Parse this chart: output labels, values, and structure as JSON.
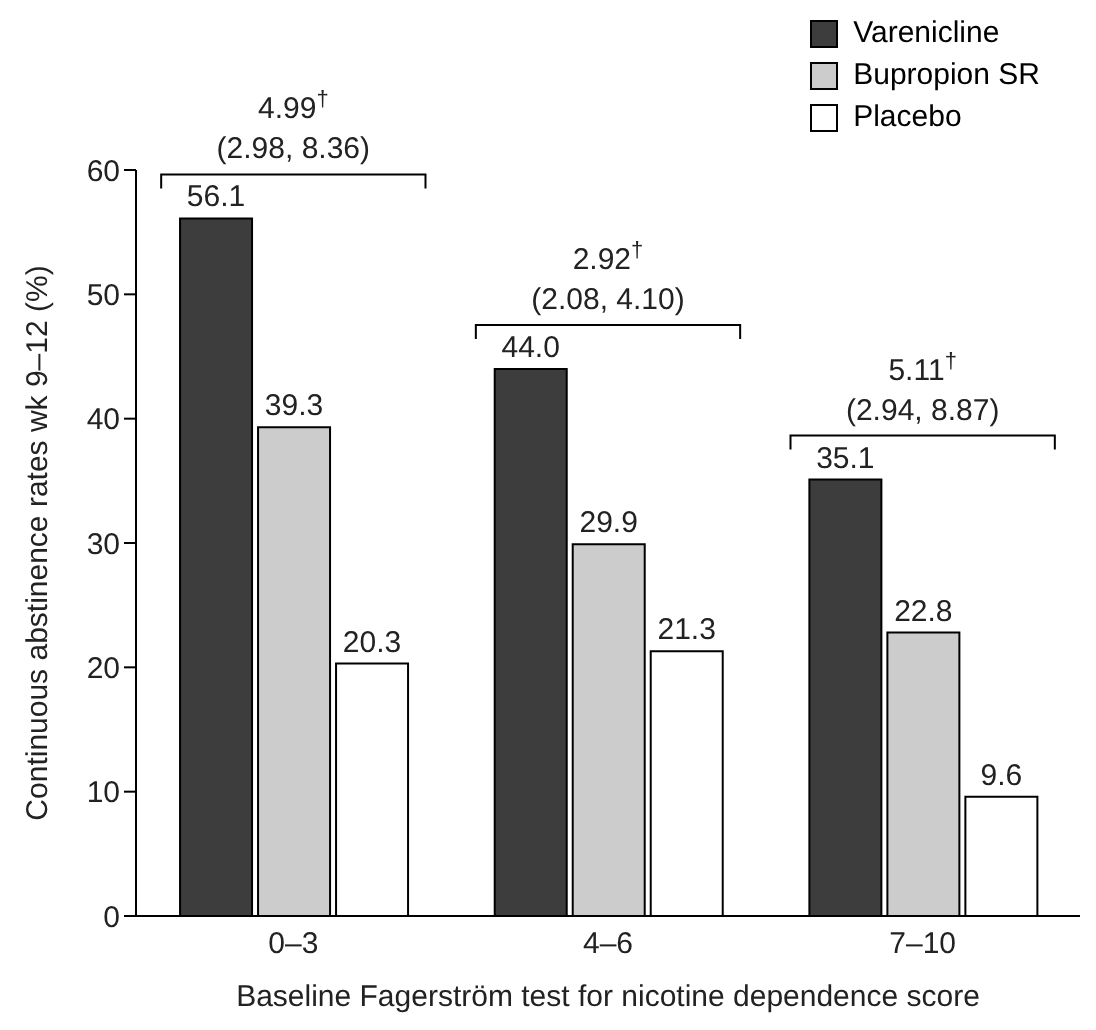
{
  "chart_data": {
    "type": "bar",
    "xlabel": "Baseline Fagerström test for nicotine dependence score",
    "ylabel": "Continuous abstinence rates wk 9–12 (%)",
    "categories": [
      "0–3",
      "4–6",
      "7–10"
    ],
    "series": [
      {
        "name": "Varenicline",
        "color": "#3d3d3d",
        "values": [
          56.1,
          44.0,
          35.1
        ],
        "value_labels": [
          "56.1",
          "44.0",
          "35.1"
        ]
      },
      {
        "name": "Bupropion SR",
        "color": "#cccccc",
        "values": [
          39.3,
          29.9,
          22.8
        ],
        "value_labels": [
          "39.3",
          "29.9",
          "22.8"
        ]
      },
      {
        "name": "Placebo",
        "color": "#ffffff",
        "values": [
          20.3,
          21.3,
          9.6
        ],
        "value_labels": [
          "20.3",
          "21.3",
          "9.6"
        ]
      }
    ],
    "ylim": [
      0,
      60
    ],
    "yticks": [
      0,
      10,
      20,
      30,
      40,
      50,
      60
    ],
    "legend": "top right",
    "annotations": [
      "4.99$^{†}$\n(2.98, 8.36)",
      "2.92$^{†}$\n(2.08, 4.10)",
      "5.11$^{†}$\n(2.94, 8.87)"
    ]
  }
}
